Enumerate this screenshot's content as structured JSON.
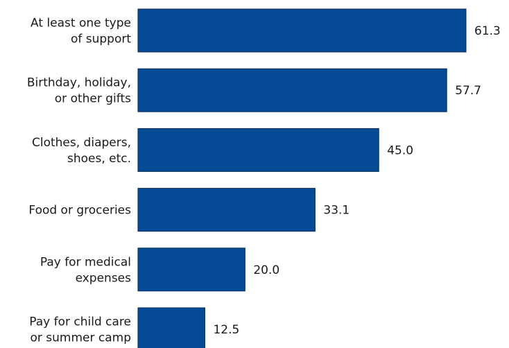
{
  "chart_data": {
    "type": "bar",
    "orientation": "horizontal",
    "categories": [
      [
        "At least one type",
        "of support"
      ],
      [
        "Birthday, holiday,",
        "or other gifts"
      ],
      [
        "Clothes, diapers,",
        "shoes, etc."
      ],
      [
        "Food or groceries"
      ],
      [
        "Pay for medical",
        "expenses"
      ],
      [
        "Pay for child care",
        "or summer camp"
      ]
    ],
    "values": [
      61.3,
      57.7,
      45.0,
      33.1,
      20.0,
      12.5
    ],
    "value_labels": [
      "61.3",
      "57.7",
      "45.0",
      "33.1",
      "20.0",
      "12.5"
    ],
    "title": "",
    "xlabel": "",
    "ylabel": "",
    "xlim": [
      0,
      61.3
    ],
    "grid": false,
    "colors": {
      "bar_fill": "#044b95",
      "bar_stroke": "#0a2a55",
      "text": "#1a1a1a"
    }
  }
}
